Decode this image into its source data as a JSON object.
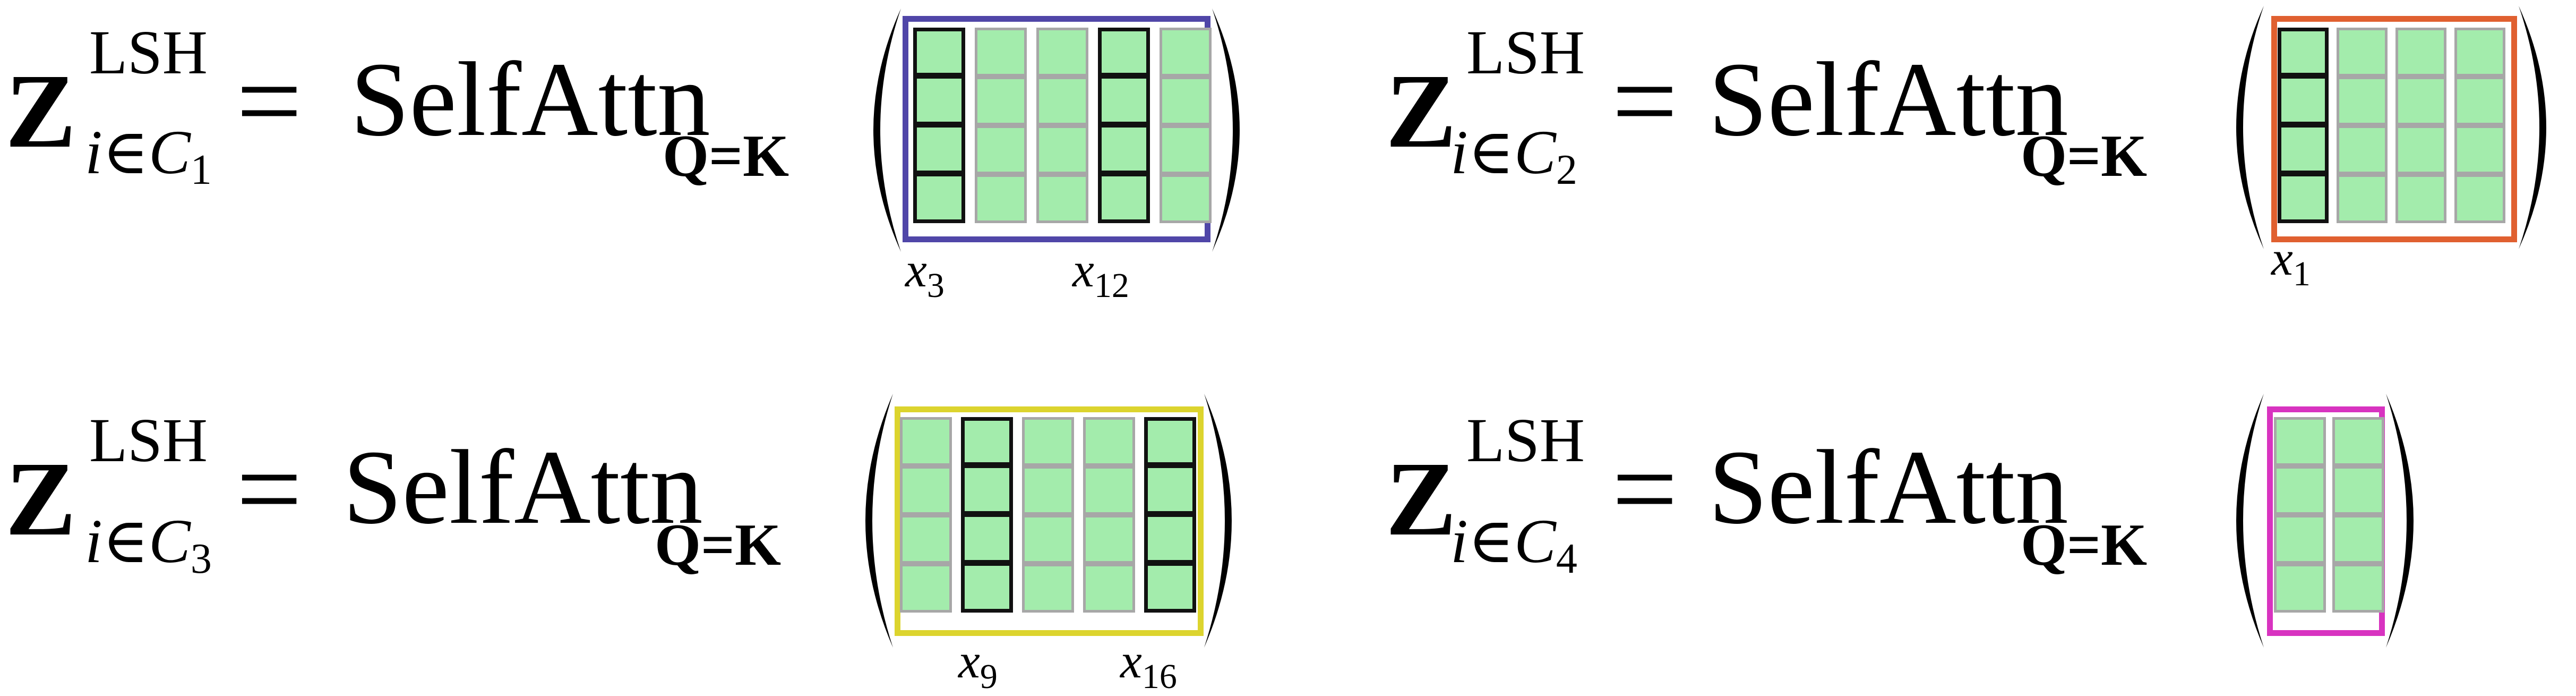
{
  "equations": [
    {
      "lhs_symbol": "Z",
      "lhs_superscript": "LSH",
      "lhs_subscript": "i∈C",
      "lhs_subscript_index": "1",
      "operator": "=",
      "function_name": "SelfAttn",
      "function_subscript": "Q=K",
      "frame_color": "#5046a8",
      "columns": [
        true,
        false,
        false,
        true,
        false
      ],
      "labels": [
        {
          "var": "x",
          "index": "3"
        },
        {
          "var": "x",
          "index": "12"
        }
      ]
    },
    {
      "lhs_symbol": "Z",
      "lhs_superscript": "LSH",
      "lhs_subscript": "i∈C",
      "lhs_subscript_index": "2",
      "operator": "=",
      "function_name": "SelfAttn",
      "function_subscript": "Q=K",
      "frame_color": "#e06030",
      "columns": [
        true,
        false,
        false,
        false
      ],
      "labels": [
        {
          "var": "x",
          "index": "1"
        }
      ]
    },
    {
      "lhs_symbol": "Z",
      "lhs_superscript": "LSH",
      "lhs_subscript": "i∈C",
      "lhs_subscript_index": "3",
      "operator": "=",
      "function_name": "SelfAttn",
      "function_subscript": "Q=K",
      "frame_color": "#dcd42e",
      "columns": [
        false,
        true,
        false,
        false,
        true
      ],
      "labels": [
        {
          "var": "x",
          "index": "9"
        },
        {
          "var": "x",
          "index": "16"
        }
      ]
    },
    {
      "lhs_symbol": "Z",
      "lhs_superscript": "LSH",
      "lhs_subscript": "i∈C",
      "lhs_subscript_index": "4",
      "operator": "=",
      "function_name": "SelfAttn",
      "function_subscript": "Q=K",
      "frame_color": "#d833c0",
      "columns": [
        false,
        false
      ],
      "labels": []
    }
  ],
  "colors": {
    "cell_fill": "#a3ecac",
    "highlight_border": "#111111",
    "normal_border": "#a7a7a7"
  }
}
